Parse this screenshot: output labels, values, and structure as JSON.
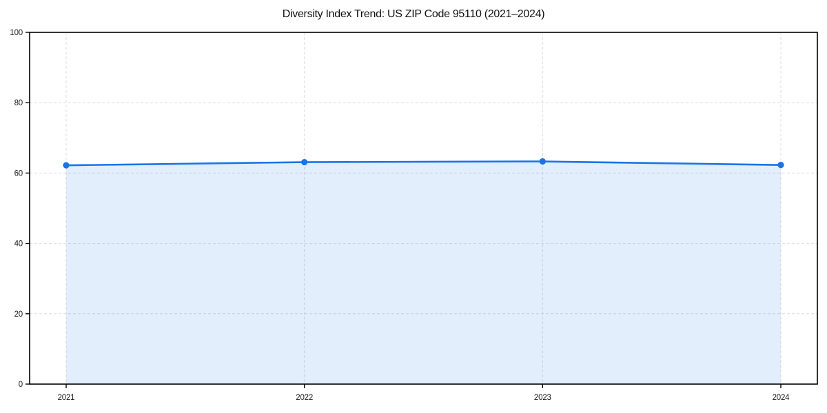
{
  "figure": {
    "title": "Diversity Index Trend: US ZIP Code 95110 (2021–2024)"
  },
  "chart_data": {
    "type": "area",
    "title": "Diversity Index Trend: US ZIP Code 95110 (2021–2024)",
    "categories": [
      "2021",
      "2022",
      "2023",
      "2024"
    ],
    "series": [
      {
        "name": "Diversity Index",
        "values": [
          62.2,
          63.1,
          63.3,
          62.3
        ]
      }
    ],
    "xlabel": "",
    "ylabel": "",
    "ylim": [
      0,
      100
    ],
    "yticks": [
      0,
      20,
      40,
      60,
      80,
      100
    ],
    "grid": "dashed-both-axes",
    "legend_position": "none",
    "colors": {
      "line": "#1a73e8",
      "marker": "#1a73e8",
      "area_fill": "rgba(26,115,232,0.12)",
      "gridline": "#dcdcdc",
      "spine": "#000000",
      "tick_text": "#1a1a1a",
      "background": "#ffffff"
    }
  }
}
